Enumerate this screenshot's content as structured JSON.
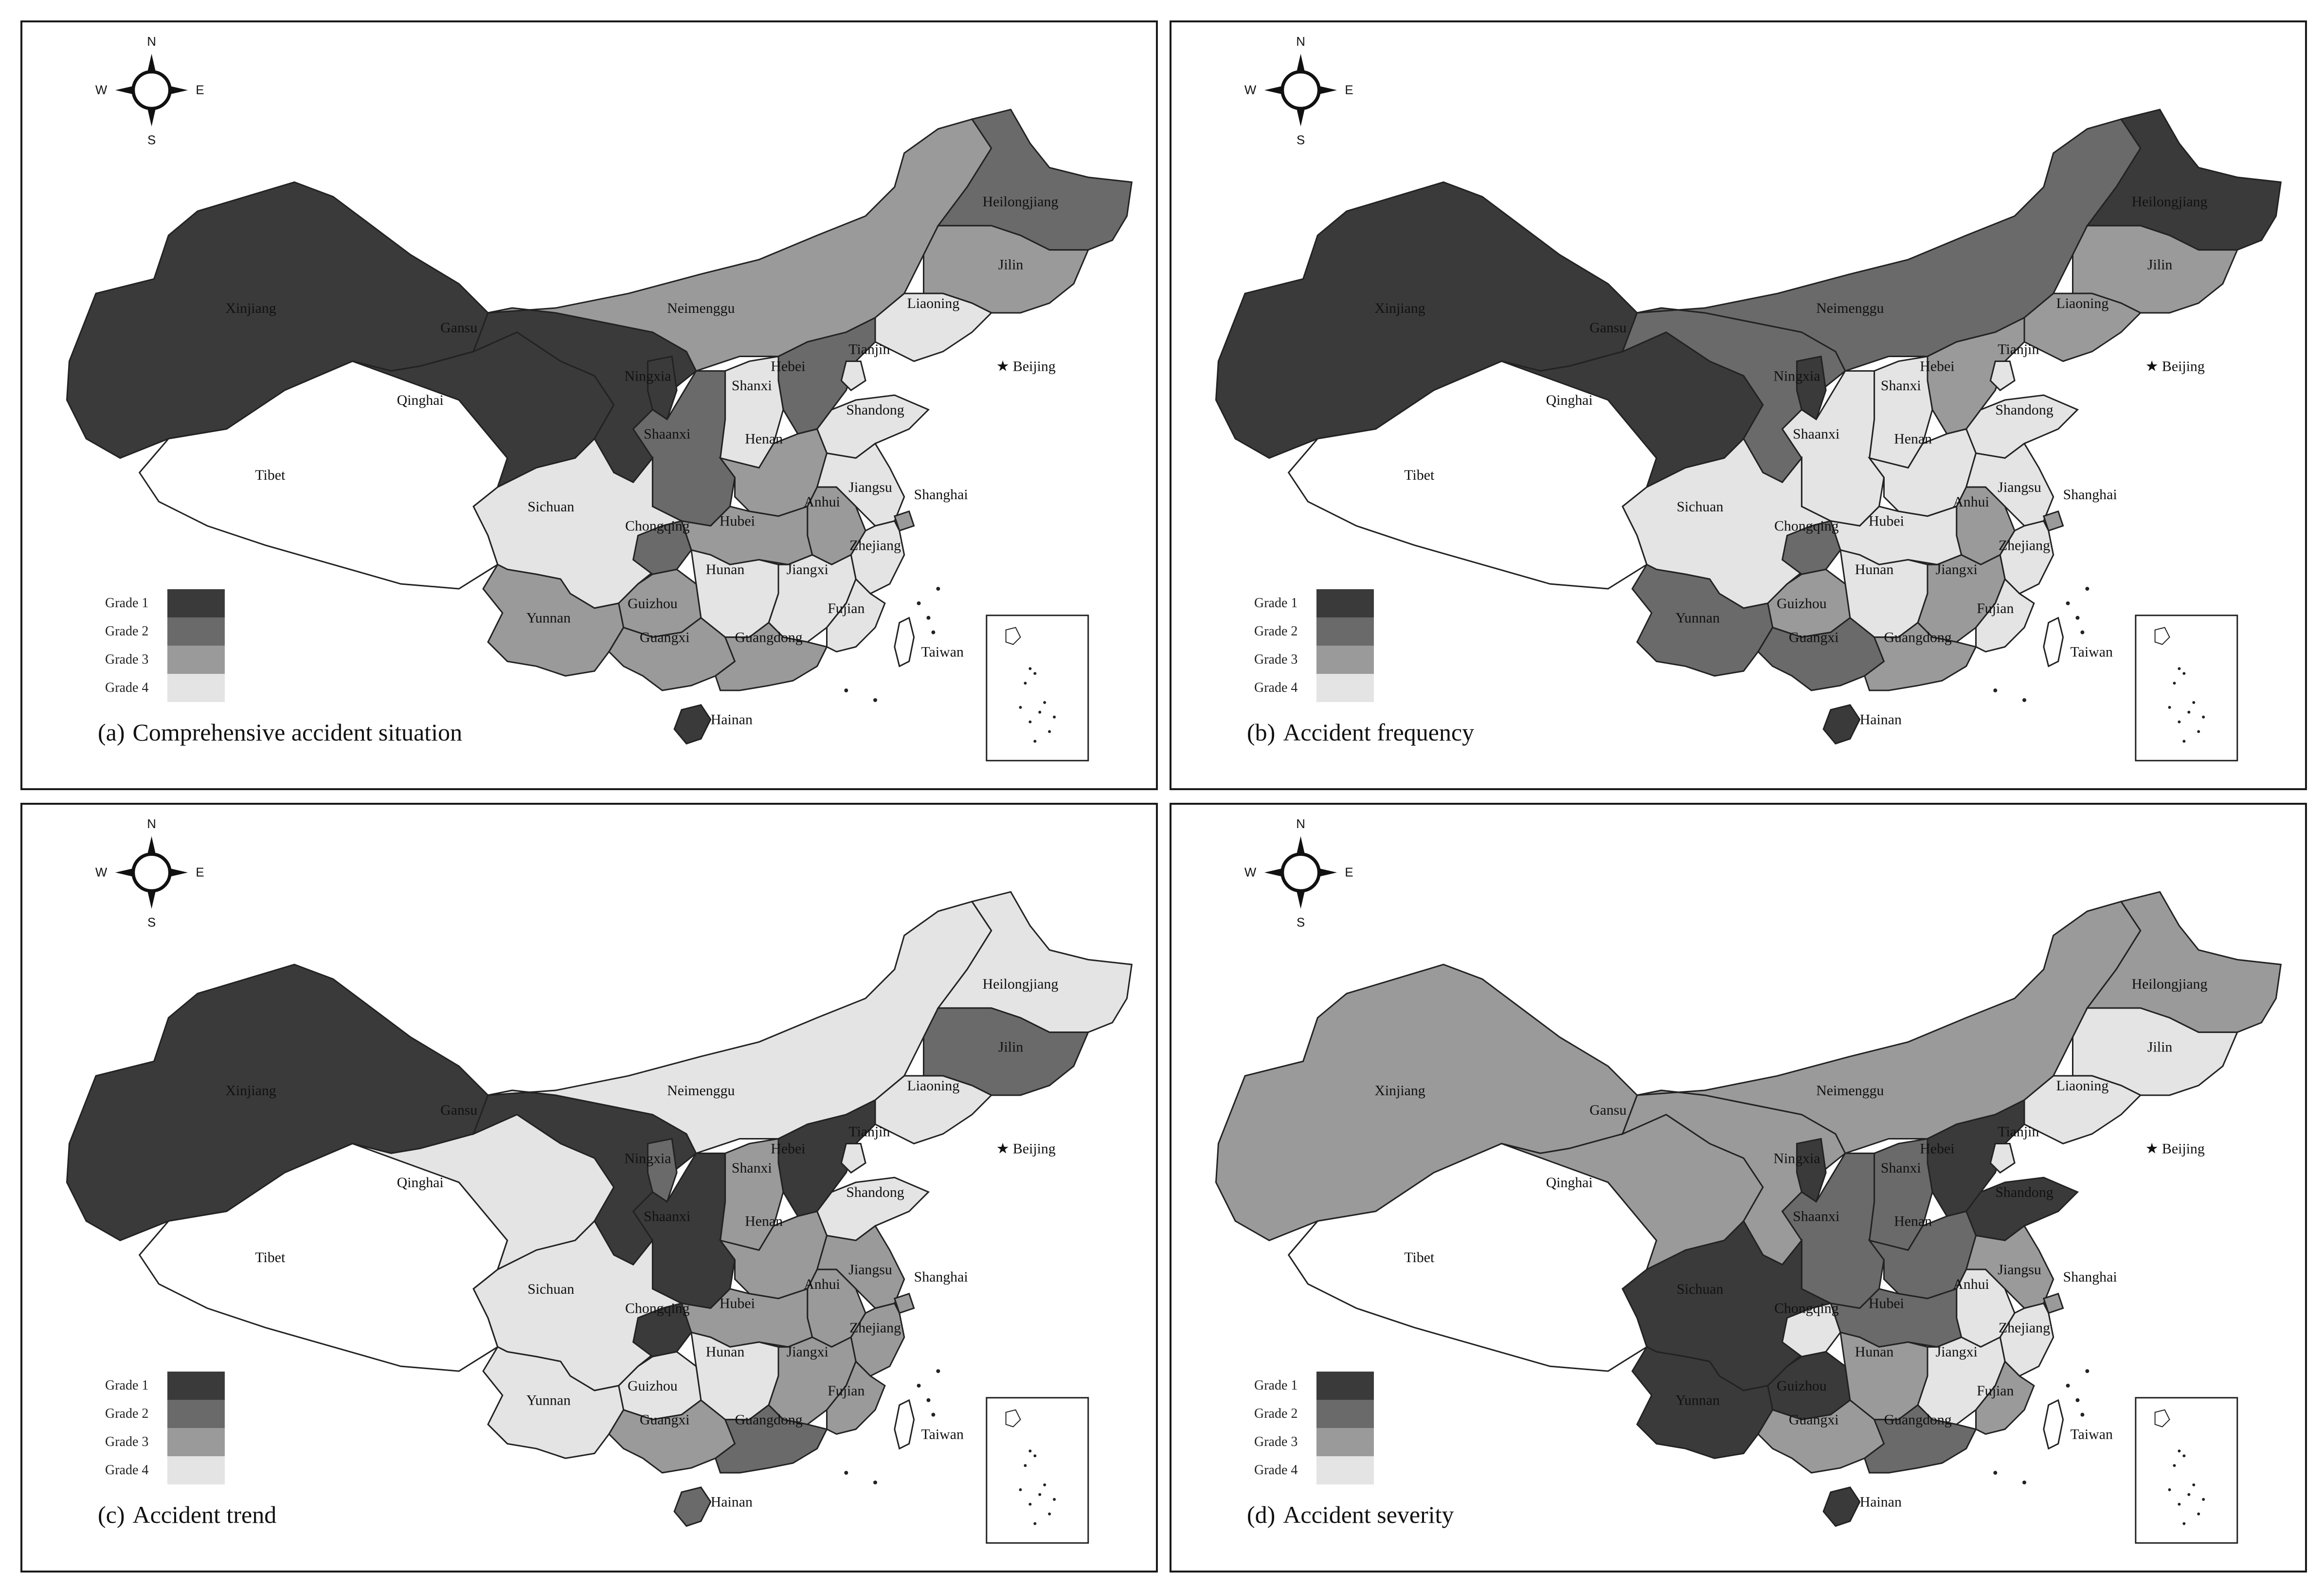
{
  "compass": {
    "n": "N",
    "s": "S",
    "e": "E",
    "w": "W"
  },
  "legend": [
    "Grade 1",
    "Grade 2",
    "Grade 3",
    "Grade 4"
  ],
  "grade_colors": [
    "#3a3a3a",
    "#6a6a6a",
    "#9a9a9a",
    "#e4e4e4"
  ],
  "extra_labels": {
    "beijing": "★ Beijing",
    "taiwan": "Taiwan",
    "hainan": "Hainan",
    "tibet": "Tibet",
    "tianjin": "Tianjin",
    "shanghai": "Shanghai"
  },
  "provinces": [
    "Xinjiang",
    "Tibet",
    "Qinghai",
    "Gansu",
    "Neimenggu",
    "Heilongjiang",
    "Jilin",
    "Liaoning",
    "Hebei",
    "Tianjin",
    "Shanxi",
    "Shandong",
    "Ningxia",
    "Shaanxi",
    "Henan",
    "Jiangsu",
    "Anhui",
    "Hubei",
    "Sichuan",
    "Chongqing",
    "Shanghai",
    "Zhejiang",
    "Hunan",
    "Jiangxi",
    "Guizhou",
    "Yunnan",
    "Guangxi",
    "Guangdong",
    "Fujian",
    "Taiwan",
    "Hainan"
  ],
  "panels": [
    {
      "letter": "(a)",
      "title": "Comprehensive accident situation",
      "grades": {
        "Xinjiang": 1,
        "Tibet": 0,
        "Qinghai": 1,
        "Gansu": 1,
        "Neimenggu": 3,
        "Heilongjiang": 2,
        "Jilin": 3,
        "Liaoning": 4,
        "Hebei": 2,
        "Tianjin": 4,
        "Shanxi": 4,
        "Shandong": 4,
        "Ningxia": 1,
        "Shaanxi": 2,
        "Henan": 3,
        "Jiangsu": 4,
        "Anhui": 3,
        "Hubei": 3,
        "Sichuan": 4,
        "Chongqing": 2,
        "Shanghai": 3,
        "Zhejiang": 4,
        "Hunan": 4,
        "Jiangxi": 4,
        "Guizhou": 3,
        "Yunnan": 3,
        "Guangxi": 3,
        "Guangdong": 3,
        "Fujian": 4,
        "Hainan": 1
      }
    },
    {
      "letter": "(b)",
      "title": "Accident frequency",
      "grades": {
        "Xinjiang": 1,
        "Tibet": 0,
        "Qinghai": 1,
        "Gansu": 2,
        "Neimenggu": 2,
        "Heilongjiang": 1,
        "Jilin": 3,
        "Liaoning": 3,
        "Hebei": 3,
        "Tianjin": 4,
        "Shanxi": 4,
        "Shandong": 4,
        "Ningxia": 1,
        "Shaanxi": 4,
        "Henan": 4,
        "Jiangsu": 4,
        "Anhui": 3,
        "Hubei": 4,
        "Sichuan": 4,
        "Chongqing": 2,
        "Shanghai": 3,
        "Zhejiang": 4,
        "Hunan": 4,
        "Jiangxi": 3,
        "Guizhou": 3,
        "Yunnan": 2,
        "Guangxi": 2,
        "Guangdong": 3,
        "Fujian": 4,
        "Hainan": 1
      }
    },
    {
      "letter": "(c)",
      "title": "Accident trend",
      "grades": {
        "Xinjiang": 1,
        "Tibet": 0,
        "Qinghai": 4,
        "Gansu": 1,
        "Neimenggu": 4,
        "Heilongjiang": 4,
        "Jilin": 2,
        "Liaoning": 4,
        "Hebei": 1,
        "Tianjin": 4,
        "Shanxi": 3,
        "Shandong": 4,
        "Ningxia": 2,
        "Shaanxi": 1,
        "Henan": 3,
        "Jiangsu": 3,
        "Anhui": 3,
        "Hubei": 3,
        "Sichuan": 4,
        "Chongqing": 1,
        "Shanghai": 3,
        "Zhejiang": 3,
        "Hunan": 4,
        "Jiangxi": 3,
        "Guizhou": 4,
        "Yunnan": 4,
        "Guangxi": 3,
        "Guangdong": 2,
        "Fujian": 3,
        "Hainan": 2
      }
    },
    {
      "letter": "(d)",
      "title": "Accident severity",
      "grades": {
        "Xinjiang": 3,
        "Tibet": 0,
        "Qinghai": 3,
        "Gansu": 3,
        "Neimenggu": 3,
        "Heilongjiang": 3,
        "Jilin": 4,
        "Liaoning": 4,
        "Hebei": 1,
        "Tianjin": 4,
        "Shanxi": 2,
        "Shandong": 1,
        "Ningxia": 1,
        "Shaanxi": 2,
        "Henan": 2,
        "Jiangsu": 3,
        "Anhui": 4,
        "Hubei": 2,
        "Sichuan": 1,
        "Chongqing": 4,
        "Shanghai": 3,
        "Zhejiang": 4,
        "Hunan": 3,
        "Jiangxi": 4,
        "Guizhou": 1,
        "Yunnan": 1,
        "Guangxi": 3,
        "Guangdong": 2,
        "Fujian": 3,
        "Hainan": 1
      }
    }
  ]
}
